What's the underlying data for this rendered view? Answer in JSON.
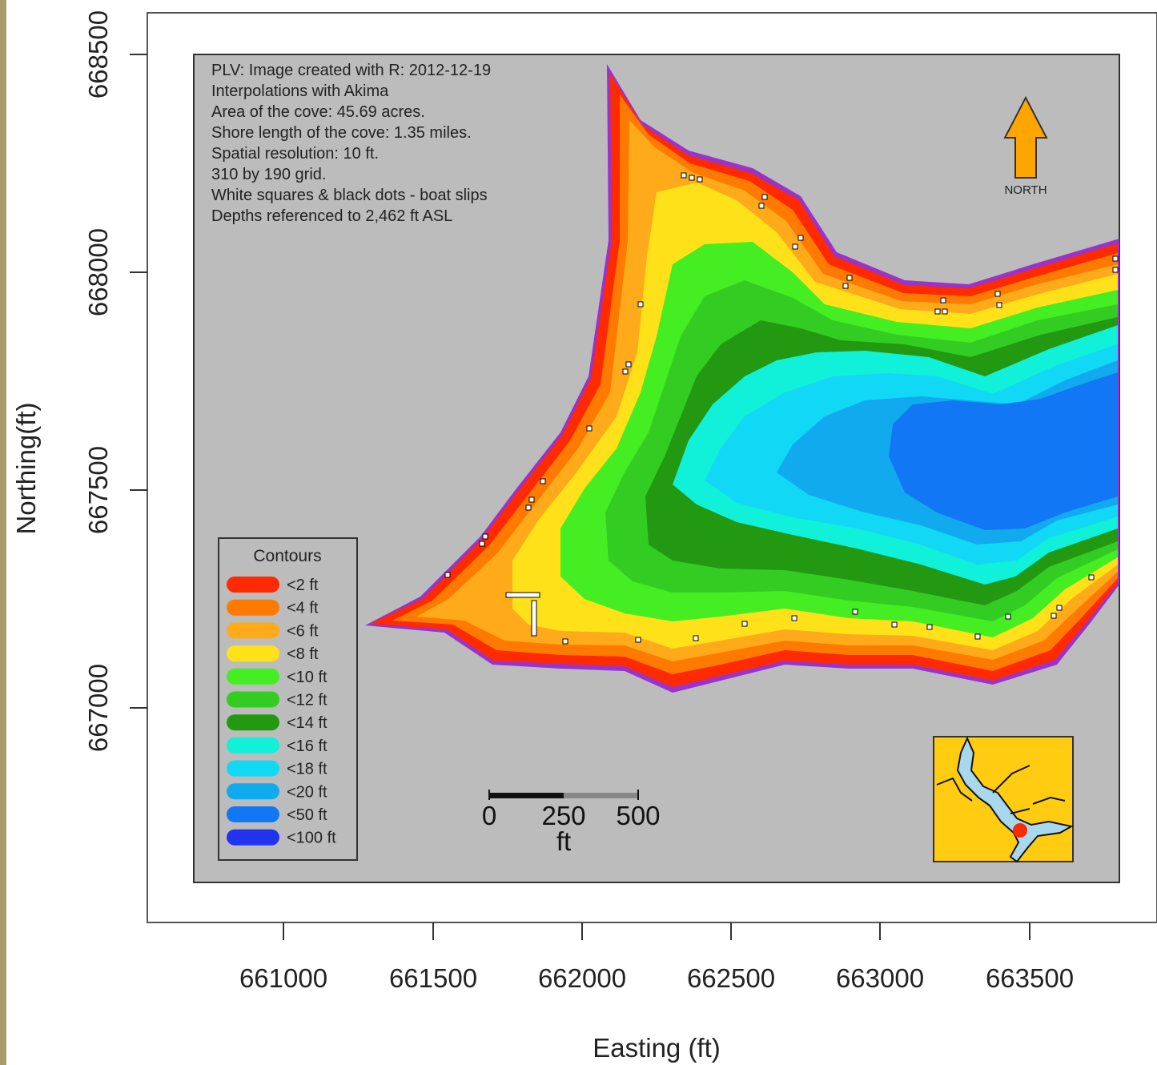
{
  "axes": {
    "xlabel": "Easting (ft)",
    "ylabel": "Northing(ft)",
    "x_ticks": [
      "661000",
      "661500",
      "662000",
      "662500",
      "663000",
      "663500"
    ],
    "y_ticks": [
      "668500",
      "668000",
      "667500",
      "667000"
    ]
  },
  "info_lines": [
    "PLV: Image created with R: 2012-12-19",
    "Interpolations with Akima",
    "Area of the cove: 45.69 acres.",
    "Shore length of the cove: 1.35 miles.",
    "Spatial resolution: 10 ft.",
    "310 by 190 grid.",
    "White squares & black dots - boat slips",
    "Depths referenced to 2,462 ft ASL"
  ],
  "north_arrow": {
    "label": "NORTH",
    "color": "#ffa500"
  },
  "legend": {
    "title": "Contours",
    "items": [
      {
        "label": "<2 ft",
        "color": "#ff2a00"
      },
      {
        "label": "<4 ft",
        "color": "#ff7a00"
      },
      {
        "label": "<6 ft",
        "color": "#ffaa1a"
      },
      {
        "label": "<8 ft",
        "color": "#ffe11a"
      },
      {
        "label": "<10 ft",
        "color": "#44ee22"
      },
      {
        "label": "<12 ft",
        "color": "#33cc22"
      },
      {
        "label": "<14 ft",
        "color": "#229911"
      },
      {
        "label": "<16 ft",
        "color": "#11f0d8"
      },
      {
        "label": "<18 ft",
        "color": "#11d8f5"
      },
      {
        "label": "<20 ft",
        "color": "#11aaee"
      },
      {
        "label": "<50 ft",
        "color": "#1177f5"
      },
      {
        "label": "<100 ft",
        "color": "#2233ee"
      }
    ]
  },
  "scale_bar": {
    "labels": [
      "0",
      "250",
      "500"
    ],
    "unit": "ft"
  },
  "colors": {
    "panel": "#bcbcbc",
    "shoreline": "#9933cc",
    "inset_land": "#ffcc11",
    "inset_water": "#a8d8ee",
    "inset_marker": "#ff2a00"
  }
}
